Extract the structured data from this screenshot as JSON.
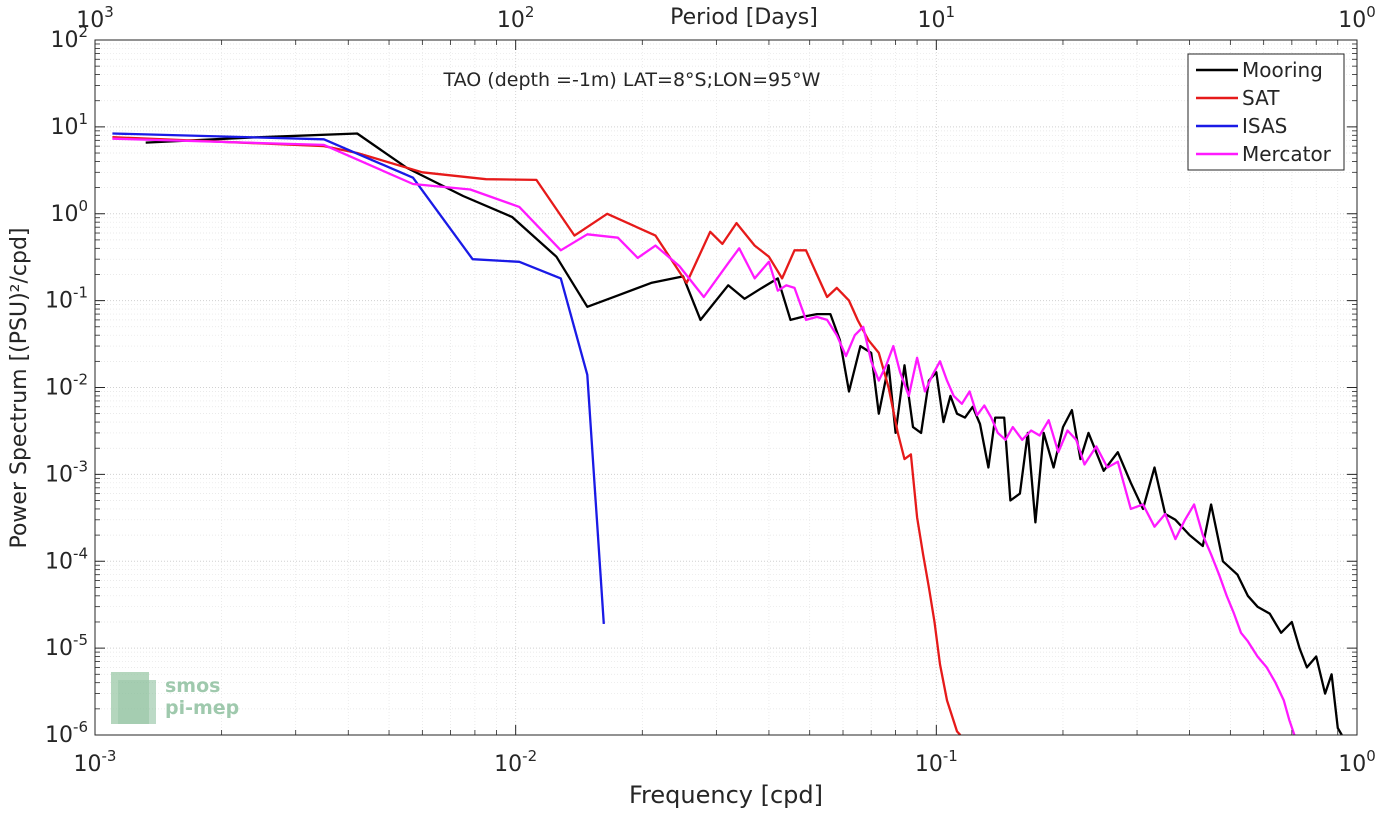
{
  "chart_data": {
    "type": "line",
    "title": "TAO (depth =-1m) LAT=8°S;LON=95°W",
    "xlabel": "Frequency [cpd]",
    "ylabel": "Power Spectrum [(PSU)²/cpd]",
    "top_axis_label": "Period [Days]",
    "x_scale": "log",
    "y_scale": "log",
    "xlim": [
      0.001,
      1
    ],
    "ylim": [
      1e-06,
      100
    ],
    "grid": true,
    "legend_position": "top-right",
    "x_ticks": [
      {
        "value": 0.001,
        "base": "10",
        "exp": "-3"
      },
      {
        "value": 0.01,
        "base": "10",
        "exp": "-2"
      },
      {
        "value": 0.1,
        "base": "10",
        "exp": "-1"
      },
      {
        "value": 1,
        "base": "10",
        "exp": "0"
      }
    ],
    "top_ticks": [
      {
        "value": 0.001,
        "base": "10",
        "exp": "3"
      },
      {
        "value": 0.01,
        "base": "10",
        "exp": "2"
      },
      {
        "value": 0.1,
        "base": "10",
        "exp": "1"
      },
      {
        "value": 1,
        "base": "10",
        "exp": "0"
      }
    ],
    "y_ticks": [
      {
        "value": 100,
        "base": "10",
        "exp": "2"
      },
      {
        "value": 10,
        "base": "10",
        "exp": "1"
      },
      {
        "value": 1,
        "base": "10",
        "exp": "0"
      },
      {
        "value": 0.1,
        "base": "10",
        "exp": "-1"
      },
      {
        "value": 0.01,
        "base": "10",
        "exp": "-2"
      },
      {
        "value": 0.001,
        "base": "10",
        "exp": "-3"
      },
      {
        "value": 0.0001,
        "base": "10",
        "exp": "-4"
      },
      {
        "value": 1e-05,
        "base": "10",
        "exp": "-5"
      },
      {
        "value": 1e-06,
        "base": "10",
        "exp": "-6"
      }
    ],
    "series": [
      {
        "name": "Mooring",
        "color": "#000000",
        "points": [
          [
            0.00132,
            6.6
          ],
          [
            0.0023,
            7.5
          ],
          [
            0.0042,
            8.4
          ],
          [
            0.0055,
            3.4
          ],
          [
            0.0075,
            1.6
          ],
          [
            0.0098,
            0.92
          ],
          [
            0.0125,
            0.32
          ],
          [
            0.0148,
            0.085
          ],
          [
            0.0175,
            0.115
          ],
          [
            0.021,
            0.16
          ],
          [
            0.025,
            0.19
          ],
          [
            0.0275,
            0.06
          ],
          [
            0.032,
            0.15
          ],
          [
            0.035,
            0.105
          ],
          [
            0.038,
            0.135
          ],
          [
            0.042,
            0.18
          ],
          [
            0.045,
            0.06
          ],
          [
            0.048,
            0.065
          ],
          [
            0.052,
            0.07
          ],
          [
            0.056,
            0.07
          ],
          [
            0.059,
            0.035
          ],
          [
            0.062,
            0.009
          ],
          [
            0.066,
            0.03
          ],
          [
            0.07,
            0.025
          ],
          [
            0.073,
            0.005
          ],
          [
            0.077,
            0.018
          ],
          [
            0.08,
            0.003
          ],
          [
            0.084,
            0.018
          ],
          [
            0.088,
            0.0035
          ],
          [
            0.092,
            0.003
          ],
          [
            0.096,
            0.012
          ],
          [
            0.1,
            0.015
          ],
          [
            0.104,
            0.004
          ],
          [
            0.108,
            0.008
          ],
          [
            0.112,
            0.005
          ],
          [
            0.117,
            0.0045
          ],
          [
            0.122,
            0.006
          ],
          [
            0.127,
            0.0038
          ],
          [
            0.133,
            0.0012
          ],
          [
            0.138,
            0.0045
          ],
          [
            0.145,
            0.0045
          ],
          [
            0.15,
            0.0005
          ],
          [
            0.158,
            0.0006
          ],
          [
            0.165,
            0.003
          ],
          [
            0.172,
            0.00028
          ],
          [
            0.18,
            0.003
          ],
          [
            0.19,
            0.0012
          ],
          [
            0.2,
            0.0035
          ],
          [
            0.21,
            0.0055
          ],
          [
            0.22,
            0.0015
          ],
          [
            0.23,
            0.003
          ],
          [
            0.25,
            0.0011
          ],
          [
            0.27,
            0.0018
          ],
          [
            0.29,
            0.0008
          ],
          [
            0.31,
            0.0004
          ],
          [
            0.33,
            0.0012
          ],
          [
            0.35,
            0.00035
          ],
          [
            0.37,
            0.0003
          ],
          [
            0.4,
            0.0002
          ],
          [
            0.43,
            0.00015
          ],
          [
            0.45,
            0.00045
          ],
          [
            0.48,
            0.0001
          ],
          [
            0.52,
            7e-05
          ],
          [
            0.55,
            4e-05
          ],
          [
            0.58,
            3e-05
          ],
          [
            0.62,
            2.5e-05
          ],
          [
            0.66,
            1.5e-05
          ],
          [
            0.7,
            2e-05
          ],
          [
            0.73,
            1e-05
          ],
          [
            0.76,
            6e-06
          ],
          [
            0.8,
            8e-06
          ],
          [
            0.84,
            3e-06
          ],
          [
            0.87,
            5e-06
          ],
          [
            0.9,
            1.2e-06
          ],
          [
            0.92,
            1e-06
          ]
        ]
      },
      {
        "name": "SAT",
        "color": "#e61a1a",
        "points": [
          [
            0.0011,
            7.6
          ],
          [
            0.0035,
            6.0
          ],
          [
            0.0042,
            5.0
          ],
          [
            0.006,
            3.0
          ],
          [
            0.0085,
            2.5
          ],
          [
            0.0112,
            2.45
          ],
          [
            0.0138,
            0.56
          ],
          [
            0.0165,
            1.0
          ],
          [
            0.0215,
            0.56
          ],
          [
            0.0255,
            0.16
          ],
          [
            0.029,
            0.62
          ],
          [
            0.031,
            0.45
          ],
          [
            0.0335,
            0.78
          ],
          [
            0.037,
            0.43
          ],
          [
            0.04,
            0.32
          ],
          [
            0.043,
            0.18
          ],
          [
            0.046,
            0.38
          ],
          [
            0.049,
            0.38
          ],
          [
            0.052,
            0.2
          ],
          [
            0.055,
            0.11
          ],
          [
            0.058,
            0.14
          ],
          [
            0.062,
            0.1
          ],
          [
            0.065,
            0.06
          ],
          [
            0.069,
            0.035
          ],
          [
            0.073,
            0.025
          ],
          [
            0.077,
            0.01
          ],
          [
            0.081,
            0.003
          ],
          [
            0.084,
            0.0015
          ],
          [
            0.087,
            0.0017
          ],
          [
            0.09,
            0.00032
          ],
          [
            0.093,
            0.00012
          ],
          [
            0.096,
            5e-05
          ],
          [
            0.099,
            2e-05
          ],
          [
            0.102,
            6.5e-06
          ],
          [
            0.106,
            2.5e-06
          ],
          [
            0.112,
            1.1e-06
          ],
          [
            0.114,
            1e-06
          ]
        ]
      },
      {
        "name": "ISAS",
        "color": "#1a1ae6",
        "points": [
          [
            0.0011,
            8.4
          ],
          [
            0.0035,
            7.2
          ],
          [
            0.0057,
            2.6
          ],
          [
            0.0079,
            0.3
          ],
          [
            0.0102,
            0.28
          ],
          [
            0.0128,
            0.18
          ],
          [
            0.0148,
            0.014
          ],
          [
            0.0162,
            1.9e-05
          ]
        ]
      },
      {
        "name": "Mercator",
        "color": "#ff1aff",
        "points": [
          [
            0.0011,
            7.3
          ],
          [
            0.0035,
            6.2
          ],
          [
            0.0057,
            2.2
          ],
          [
            0.0078,
            1.9
          ],
          [
            0.0102,
            1.2
          ],
          [
            0.0128,
            0.38
          ],
          [
            0.0148,
            0.58
          ],
          [
            0.0175,
            0.53
          ],
          [
            0.0195,
            0.31
          ],
          [
            0.0215,
            0.43
          ],
          [
            0.0245,
            0.25
          ],
          [
            0.028,
            0.11
          ],
          [
            0.032,
            0.27
          ],
          [
            0.034,
            0.4
          ],
          [
            0.037,
            0.18
          ],
          [
            0.04,
            0.28
          ],
          [
            0.042,
            0.13
          ],
          [
            0.044,
            0.15
          ],
          [
            0.046,
            0.14
          ],
          [
            0.049,
            0.06
          ],
          [
            0.052,
            0.065
          ],
          [
            0.055,
            0.06
          ],
          [
            0.058,
            0.04
          ],
          [
            0.061,
            0.023
          ],
          [
            0.064,
            0.04
          ],
          [
            0.067,
            0.05
          ],
          [
            0.07,
            0.02
          ],
          [
            0.073,
            0.012
          ],
          [
            0.076,
            0.018
          ],
          [
            0.079,
            0.03
          ],
          [
            0.082,
            0.015
          ],
          [
            0.086,
            0.008
          ],
          [
            0.09,
            0.022
          ],
          [
            0.094,
            0.009
          ],
          [
            0.098,
            0.014
          ],
          [
            0.102,
            0.02
          ],
          [
            0.106,
            0.012
          ],
          [
            0.11,
            0.008
          ],
          [
            0.115,
            0.0065
          ],
          [
            0.12,
            0.009
          ],
          [
            0.125,
            0.0048
          ],
          [
            0.13,
            0.0062
          ],
          [
            0.135,
            0.0045
          ],
          [
            0.14,
            0.003
          ],
          [
            0.146,
            0.0025
          ],
          [
            0.152,
            0.0035
          ],
          [
            0.16,
            0.0025
          ],
          [
            0.168,
            0.0032
          ],
          [
            0.176,
            0.0028
          ],
          [
            0.185,
            0.0042
          ],
          [
            0.195,
            0.0018
          ],
          [
            0.205,
            0.0032
          ],
          [
            0.215,
            0.0025
          ],
          [
            0.225,
            0.0013
          ],
          [
            0.24,
            0.0021
          ],
          [
            0.255,
            0.0012
          ],
          [
            0.27,
            0.0014
          ],
          [
            0.29,
            0.0004
          ],
          [
            0.31,
            0.00045
          ],
          [
            0.33,
            0.00025
          ],
          [
            0.35,
            0.00035
          ],
          [
            0.37,
            0.00018
          ],
          [
            0.39,
            0.0003
          ],
          [
            0.41,
            0.00045
          ],
          [
            0.43,
            0.0002
          ],
          [
            0.45,
            0.00012
          ],
          [
            0.47,
            7e-05
          ],
          [
            0.49,
            4e-05
          ],
          [
            0.51,
            2.5e-05
          ],
          [
            0.53,
            1.5e-05
          ],
          [
            0.55,
            1.2e-05
          ],
          [
            0.58,
            8e-06
          ],
          [
            0.61,
            6e-06
          ],
          [
            0.64,
            4e-06
          ],
          [
            0.67,
            2.5e-06
          ],
          [
            0.69,
            1.5e-06
          ],
          [
            0.71,
            1e-06
          ]
        ]
      }
    ]
  },
  "logo": {
    "line1": "smos",
    "line2": "pi-mep"
  }
}
